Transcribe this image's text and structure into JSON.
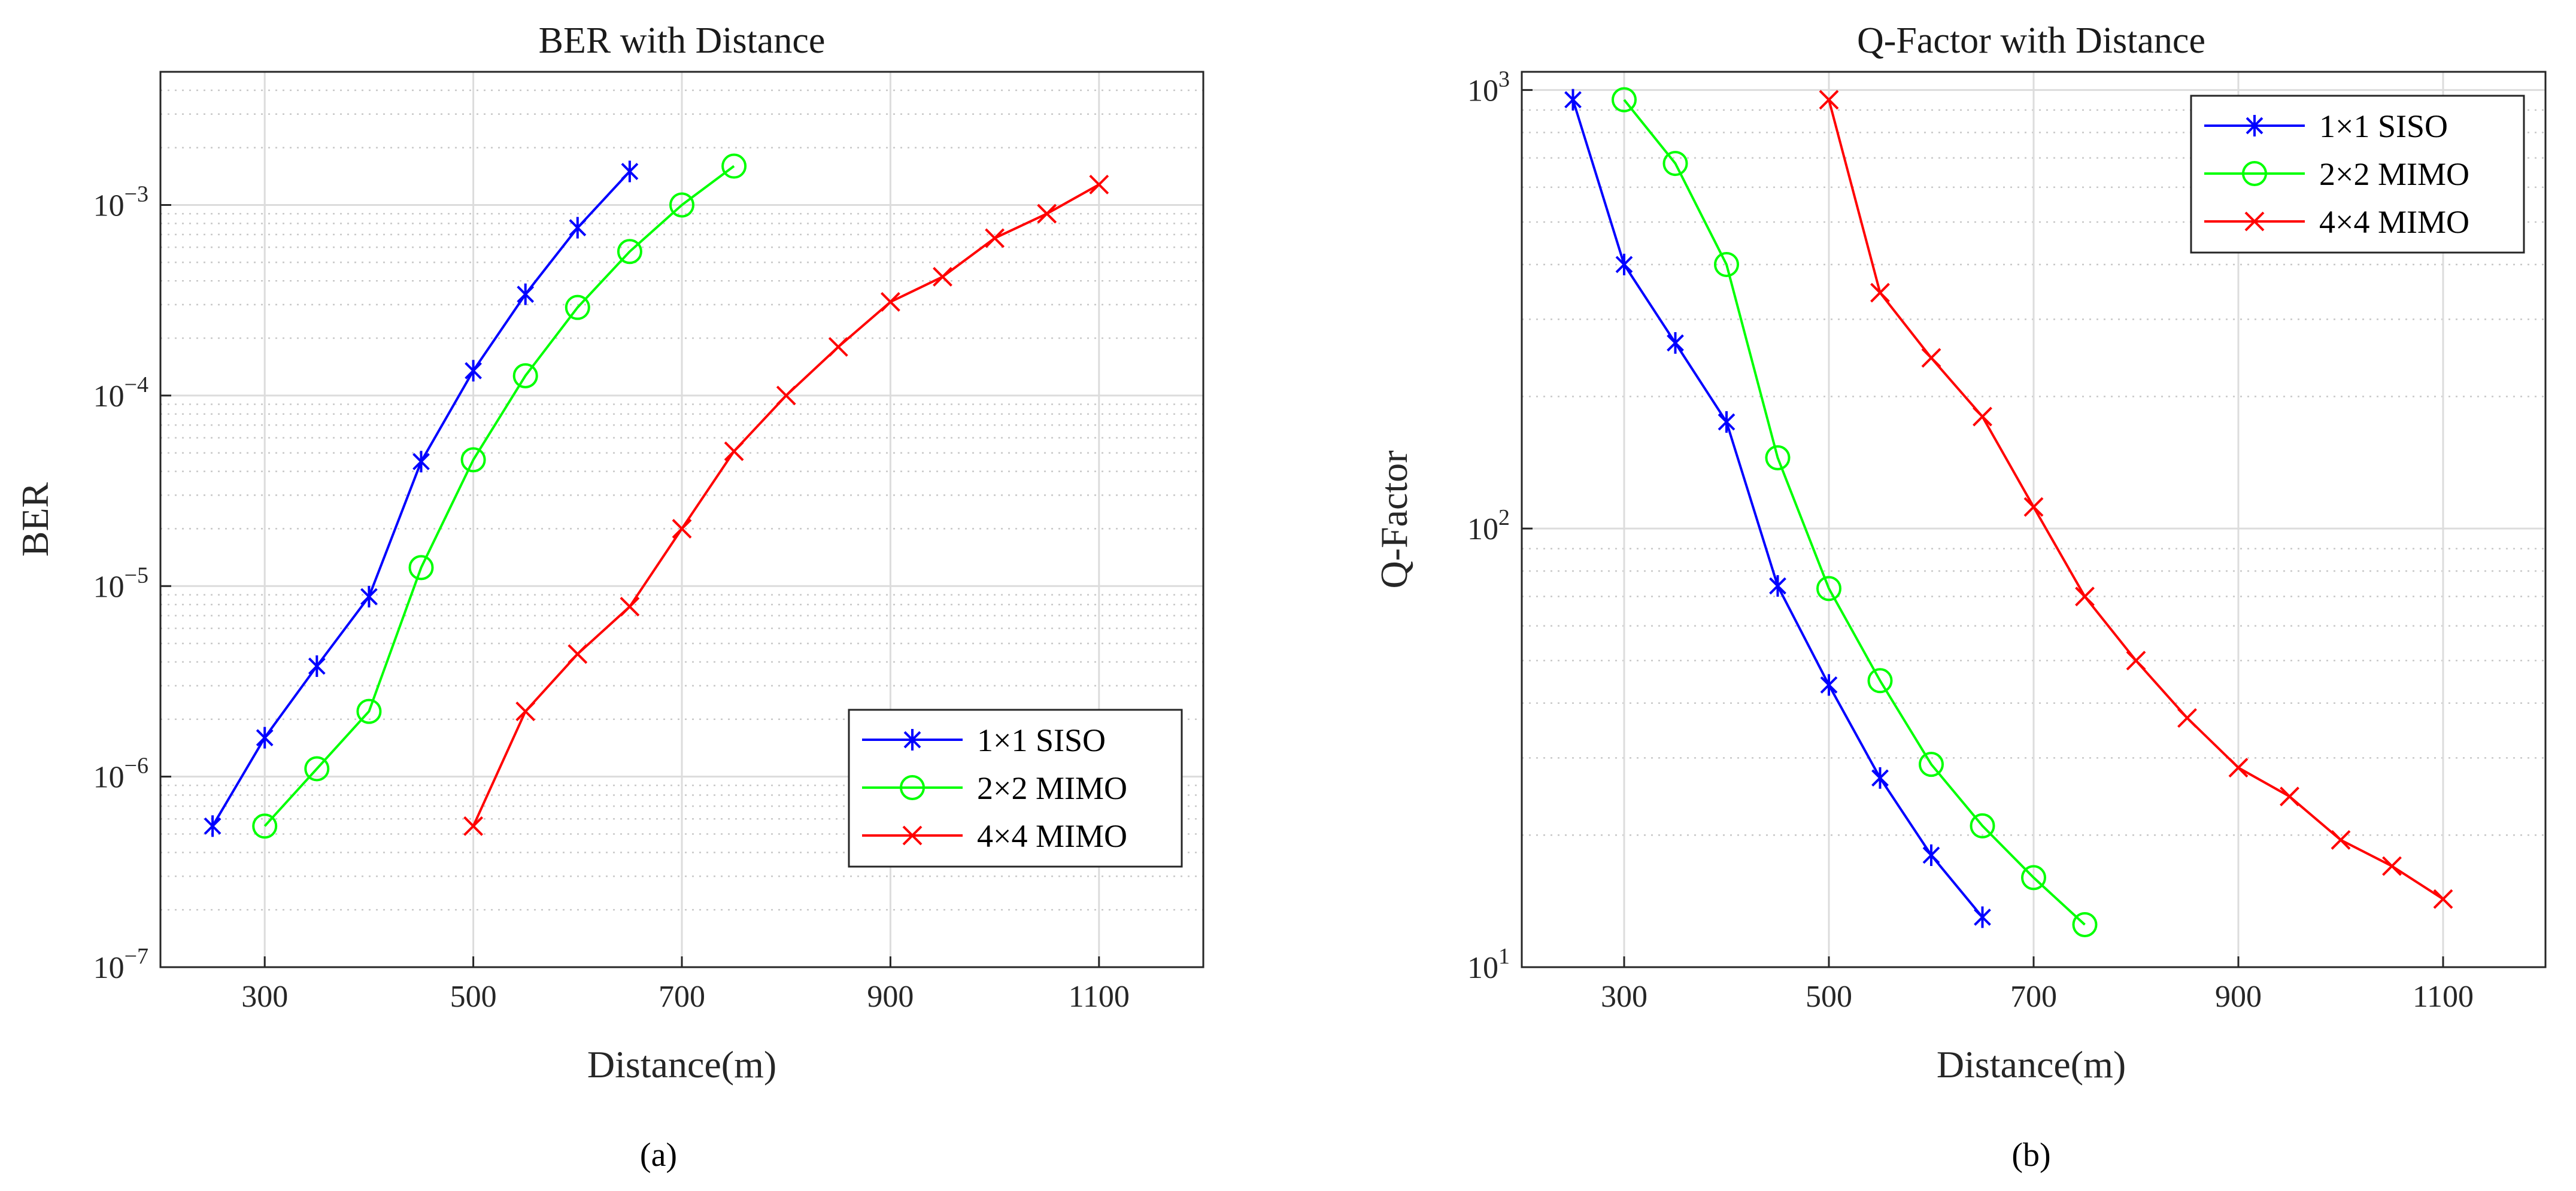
{
  "chart_data": [
    {
      "type": "line",
      "title": "BER with Distance",
      "xlabel": "Distance(m)",
      "ylabel": "BER",
      "yscale": "log",
      "xlim": [
        200,
        1200
      ],
      "ylim": [
        1e-07,
        0.005
      ],
      "xticks": [
        300,
        500,
        700,
        900,
        1100
      ],
      "yticks": [
        {
          "value": 1e-07,
          "label": "10",
          "exp": "−7"
        },
        {
          "value": 1e-06,
          "label": "10",
          "exp": "−6"
        },
        {
          "value": 1e-05,
          "label": "10",
          "exp": "−5"
        },
        {
          "value": 0.0001,
          "label": "10",
          "exp": "−4"
        },
        {
          "value": 0.001,
          "label": "10",
          "exp": "−3"
        }
      ],
      "grid": true,
      "legend_position": "bottom-right",
      "caption": "(a)",
      "series": [
        {
          "name": "1×1 SISO",
          "color": "#0000ff",
          "marker": "star",
          "x": [
            250,
            300,
            350,
            400,
            450,
            500,
            550,
            600,
            650
          ],
          "y": [
            5.5e-07,
            1.6e-06,
            3.8e-06,
            8.8e-06,
            4.5e-05,
            0.000135,
            0.00034,
            0.00076,
            0.0015
          ]
        },
        {
          "name": "2×2 MIMO",
          "color": "#00ff00",
          "marker": "circle",
          "x": [
            300,
            350,
            400,
            450,
            500,
            550,
            600,
            650,
            700,
            750
          ],
          "y": [
            5.5e-07,
            1.1e-06,
            2.2e-06,
            1.25e-05,
            4.6e-05,
            0.000127,
            0.00029,
            0.00057,
            0.001,
            0.0016
          ]
        },
        {
          "name": "4×4 MIMO",
          "color": "#ff0000",
          "marker": "x",
          "x": [
            500,
            550,
            600,
            650,
            700,
            750,
            800,
            850,
            900,
            950,
            1000,
            1050,
            1100
          ],
          "y": [
            5.5e-07,
            2.2e-06,
            4.4e-06,
            7.8e-06,
            2e-05,
            5.1e-05,
            0.0001,
            0.00018,
            0.00031,
            0.00042,
            0.00067,
            0.0009,
            0.00128
          ]
        }
      ]
    },
    {
      "type": "line",
      "title": "Q-Factor with Distance",
      "xlabel": "Distance(m)",
      "ylabel": "Q-Factor",
      "yscale": "log",
      "xlim": [
        200,
        1200
      ],
      "ylim": [
        10,
        1100
      ],
      "xticks": [
        300,
        500,
        700,
        900,
        1100
      ],
      "yticks": [
        {
          "value": 10,
          "label": "10",
          "exp": "1"
        },
        {
          "value": 100,
          "label": "10",
          "exp": "2"
        },
        {
          "value": 1000,
          "label": "10",
          "exp": "3"
        }
      ],
      "grid": true,
      "legend_position": "top-right",
      "caption": "(b)",
      "series": [
        {
          "name": "1×1 SISO",
          "color": "#0000ff",
          "marker": "star",
          "x": [
            250,
            300,
            350,
            400,
            450,
            500,
            550,
            600,
            650
          ],
          "y": [
            950,
            400,
            265,
            175,
            74,
            44,
            27,
            18,
            13
          ]
        },
        {
          "name": "2×2 MIMO",
          "color": "#00ff00",
          "marker": "circle",
          "x": [
            300,
            350,
            400,
            450,
            500,
            550,
            600,
            650,
            700,
            750
          ],
          "y": [
            950,
            680,
            400,
            145,
            73,
            45,
            29,
            21,
            16,
            12.5
          ]
        },
        {
          "name": "4×4 MIMO",
          "color": "#ff0000",
          "marker": "x",
          "x": [
            500,
            550,
            600,
            650,
            700,
            750,
            800,
            850,
            900,
            950,
            1000,
            1050,
            1100
          ],
          "y": [
            950,
            345,
            245,
            180,
            112,
            70,
            50,
            37,
            28.5,
            24.5,
            19.5,
            17,
            14.3
          ]
        }
      ]
    }
  ]
}
